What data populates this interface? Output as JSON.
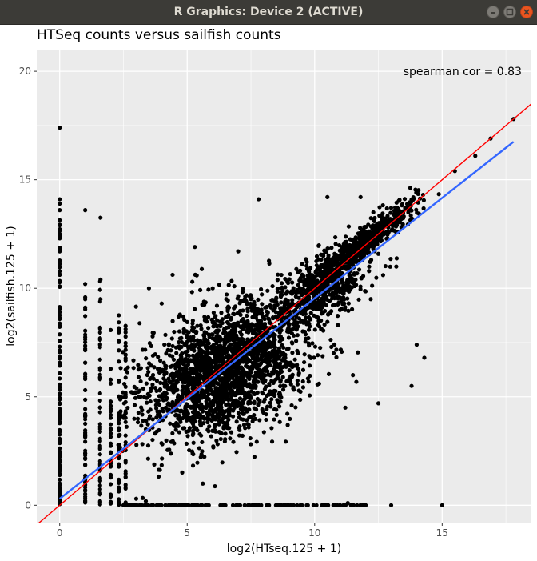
{
  "window": {
    "title": "R Graphics: Device 2 (ACTIVE)",
    "buttons": [
      "minimize",
      "maximize",
      "close"
    ]
  },
  "chart_data": {
    "type": "scatter",
    "title": "HTSeq counts versus sailfish counts",
    "xlabel": "log2(HTseq.125 + 1)",
    "ylabel": "log2(sailfish.125 + 1)",
    "xlim": [
      -0.9,
      18.5
    ],
    "ylim": [
      -0.8,
      21.0
    ],
    "x_ticks": [
      0,
      5,
      10,
      15
    ],
    "y_ticks": [
      0,
      5,
      10,
      15,
      20
    ],
    "grid": true,
    "legend": "none",
    "annotation": "spearman cor = 0.83",
    "annotation_position": [
      15.8,
      20.0
    ],
    "point_color": "#000000",
    "panel_background": "#ebebeb",
    "series": [
      {
        "name": "points",
        "mark": "scatter",
        "approx_n": 4500,
        "points": [
          [
            0,
            17.4
          ],
          [
            0,
            14.1
          ],
          [
            0,
            13.9
          ],
          [
            0,
            13.6
          ],
          [
            1,
            13.6
          ],
          [
            1.6,
            13.25
          ],
          [
            0,
            12.9
          ],
          [
            0,
            12.5
          ],
          [
            1,
            10.2
          ],
          [
            1,
            9.5
          ],
          [
            1.6,
            10.4
          ],
          [
            1.6,
            9.5
          ],
          [
            5.3,
            11.9
          ],
          [
            5.2,
            10.3
          ],
          [
            7.8,
            14.1
          ],
          [
            10.5,
            14.2
          ],
          [
            11.8,
            14.2
          ],
          [
            12.3,
            13.5
          ],
          [
            13.2,
            11.0
          ],
          [
            14.3,
            6.8
          ],
          [
            15.5,
            15.4
          ],
          [
            16.3,
            16.1
          ],
          [
            16.9,
            16.9
          ],
          [
            17.8,
            17.8
          ],
          [
            15.0,
            0.0
          ],
          [
            13.0,
            0.0
          ],
          [
            12.0,
            0.0
          ],
          [
            11.0,
            0.0
          ],
          [
            11.3,
            0.1
          ],
          [
            12.5,
            4.7
          ],
          [
            13.8,
            5.5
          ],
          [
            14.0,
            7.4
          ],
          [
            11.2,
            4.5
          ],
          [
            11.5,
            6.0
          ],
          [
            12.2,
            9.5
          ],
          [
            10.0,
            10.5
          ],
          [
            9.5,
            8.5
          ],
          [
            8.0,
            7.0
          ],
          [
            7.5,
            9.5
          ],
          [
            7.0,
            11.7
          ],
          [
            6.0,
            10.0
          ],
          [
            4.0,
            9.3
          ],
          [
            3.5,
            10.0
          ],
          [
            3.0,
            0.3
          ],
          [
            2.5,
            0.0
          ],
          [
            4.5,
            0.0
          ],
          [
            6.5,
            0.0
          ],
          [
            8.5,
            0.0
          ],
          [
            9.5,
            0.0
          ]
        ]
      },
      {
        "name": "cloud_main",
        "mark": "cloud",
        "center": [
          6.5,
          6.2
        ],
        "sd_major": 1.9,
        "sd_minor": 1.2,
        "angle_deg": 45,
        "n": 2400
      },
      {
        "name": "cloud_diagonal",
        "mark": "cloud",
        "center": [
          12.0,
          12.2
        ],
        "sd_major": 1.3,
        "sd_minor": 0.25,
        "angle_deg": 45,
        "n": 600
      },
      {
        "name": "cloud_upper",
        "mark": "cloud",
        "center": [
          10.3,
          10.0
        ],
        "sd_major": 1.1,
        "sd_minor": 0.6,
        "angle_deg": 45,
        "n": 600
      },
      {
        "name": "strip_x0",
        "mark": "strip",
        "axis": "x",
        "at": 0,
        "range": [
          0,
          13.5
        ],
        "n": 130
      },
      {
        "name": "strip_x1",
        "mark": "strip",
        "axis": "x",
        "at": 1,
        "range": [
          0,
          10.0
        ],
        "n": 60
      },
      {
        "name": "strip_x1.6",
        "mark": "strip",
        "axis": "x",
        "at": 1.585,
        "range": [
          0,
          10.5
        ],
        "n": 55
      },
      {
        "name": "strip_x2",
        "mark": "strip",
        "axis": "x",
        "at": 2.0,
        "range": [
          0,
          8.5
        ],
        "n": 40
      },
      {
        "name": "strip_x2.3",
        "mark": "strip",
        "axis": "x",
        "at": 2.32,
        "range": [
          0,
          8.8
        ],
        "n": 40
      },
      {
        "name": "strip_x2.6",
        "mark": "strip",
        "axis": "x",
        "at": 2.585,
        "range": [
          0,
          9.0
        ],
        "n": 40
      },
      {
        "name": "strip_y0",
        "mark": "strip",
        "axis": "y",
        "at": 0,
        "range": [
          2.5,
          12.0
        ],
        "n": 150
      }
    ],
    "lines": [
      {
        "name": "identity line",
        "color": "#ff0000",
        "slope": 1.0,
        "intercept": 0.0
      },
      {
        "name": "fitted line",
        "color": "#3366ff",
        "x_range": [
          0,
          17.8
        ],
        "y_range": [
          0.3,
          16.75
        ]
      }
    ]
  }
}
